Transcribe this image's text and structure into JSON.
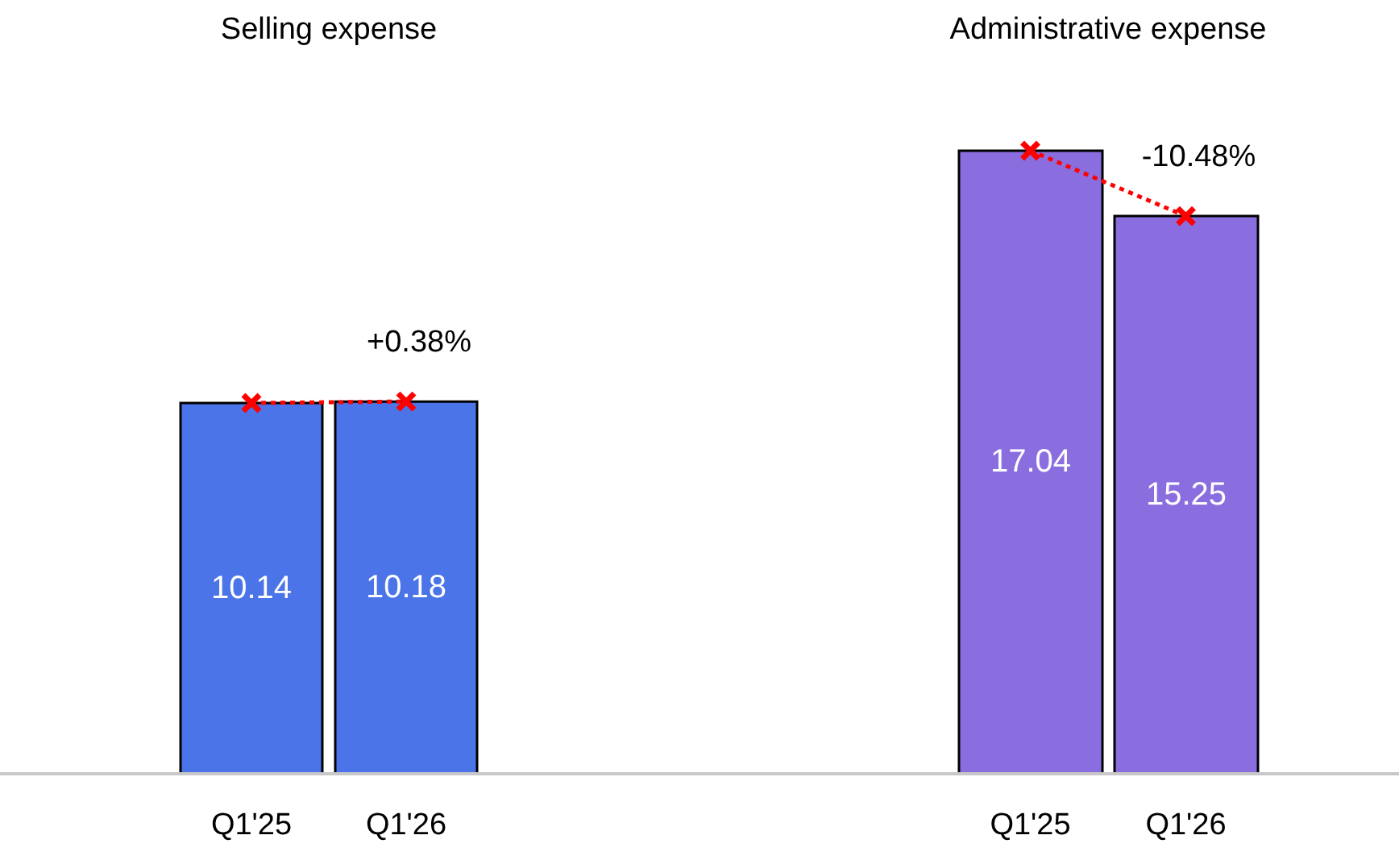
{
  "chart_data": [
    {
      "type": "bar",
      "title": "Selling expense",
      "categories": [
        "Q1'25",
        "Q1'26"
      ],
      "series": [
        {
          "type": "bar",
          "color": "#4a74e8",
          "values": [
            10.14,
            10.18
          ],
          "value_labels": [
            "10.14",
            "10.18"
          ]
        },
        {
          "type": "line",
          "color": "#ff0000",
          "values": [
            10.14,
            10.18
          ]
        }
      ],
      "marker": "cross",
      "line_style": "dotted",
      "annotations": [
        "+0.38%"
      ],
      "tick_labels": "x",
      "grid": false,
      "legend": false
    },
    {
      "type": "bar",
      "title": "Administrative expense",
      "categories": [
        "Q1'25",
        "Q1'26"
      ],
      "series": [
        {
          "type": "bar",
          "color": "#8a6ee0",
          "values": [
            17.04,
            15.25
          ],
          "value_labels": [
            "17.04",
            "15.25"
          ]
        },
        {
          "type": "line",
          "color": "#ff0000",
          "values": [
            17.04,
            15.25
          ]
        }
      ],
      "marker": "cross",
      "line_style": "dotted",
      "annotations": [
        "-10.48%"
      ],
      "tick_labels": "x",
      "grid": false,
      "legend": false
    }
  ]
}
